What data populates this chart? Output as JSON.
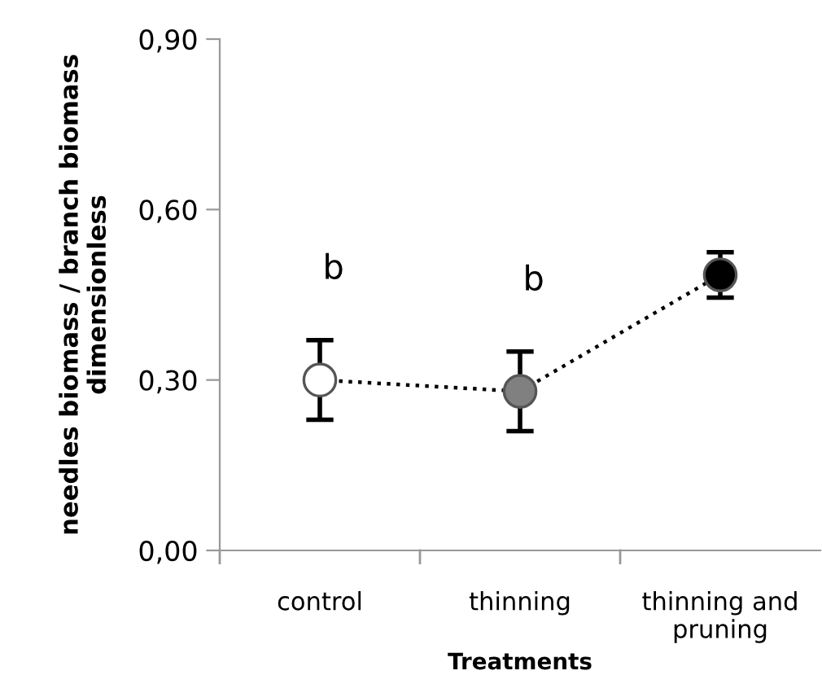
{
  "chart_data": {
    "type": "line",
    "xlabel": "Treatments",
    "ylabel": "needles biomass / branch biomass\ndimensionless",
    "categories": [
      "control",
      "thinning",
      "thinning and\npruning"
    ],
    "series": [
      {
        "color": "#000000",
        "colors": [
          "#ffffff",
          "#808080",
          "#000000"
        ],
        "values": [
          0.3,
          0.28,
          0.485
        ],
        "errors": [
          0.07,
          0.07,
          0.04
        ]
      }
    ],
    "line_style": "dotted",
    "marker": "circle",
    "grid": false,
    "legend": false,
    "ylim": [
      0,
      0.9
    ],
    "yticks": [
      {
        "value": 0,
        "label": "0,00"
      },
      {
        "value": 0.3,
        "label": "0,30"
      },
      {
        "value": 0.6,
        "label": "0,60"
      },
      {
        "value": 0.9,
        "label": "0,90"
      }
    ],
    "annotations": [
      "b",
      "b"
    ]
  }
}
